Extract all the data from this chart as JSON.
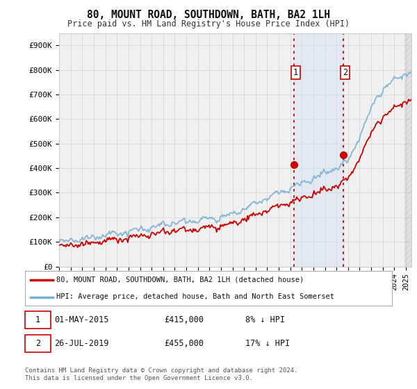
{
  "title": "80, MOUNT ROAD, SOUTHDOWN, BATH, BA2 1LH",
  "subtitle": "Price paid vs. HM Land Registry's House Price Index (HPI)",
  "ylabel_ticks": [
    "£0",
    "£100K",
    "£200K",
    "£300K",
    "£400K",
    "£500K",
    "£600K",
    "£700K",
    "£800K",
    "£900K"
  ],
  "ytick_values": [
    0,
    100000,
    200000,
    300000,
    400000,
    500000,
    600000,
    700000,
    800000,
    900000
  ],
  "ylim": [
    0,
    950000
  ],
  "xlim_start": 1995.0,
  "xlim_end": 2025.5,
  "hpi_color": "#7ab0d4",
  "price_color": "#cc0000",
  "sale1_x": 2015.33,
  "sale1_y": 415000,
  "sale2_x": 2019.58,
  "sale2_y": 455000,
  "legend_line1": "80, MOUNT ROAD, SOUTHDOWN, BATH, BA2 1LH (detached house)",
  "legend_line2": "HPI: Average price, detached house, Bath and North East Somerset",
  "footer": "Contains HM Land Registry data © Crown copyright and database right 2024.\nThis data is licensed under the Open Government Licence v3.0.",
  "background_color": "#ffffff",
  "plot_bg_color": "#f0f0f0",
  "shade_color": "#c8dcf0",
  "grid_color": "#d8d8d8"
}
